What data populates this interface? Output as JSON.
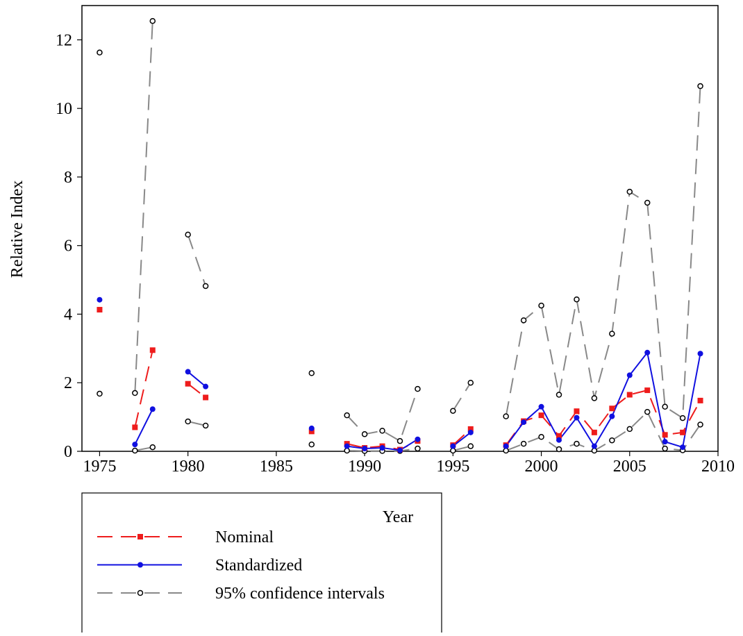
{
  "chart_data": {
    "type": "line",
    "xlabel": "Year",
    "ylabel": "Relative Index",
    "x": [
      1975,
      1976,
      1977,
      1978,
      1979,
      1980,
      1981,
      1982,
      1983,
      1984,
      1985,
      1986,
      1987,
      1988,
      1989,
      1990,
      1991,
      1992,
      1993,
      1994,
      1995,
      1996,
      1997,
      1998,
      1999,
      2000,
      2001,
      2002,
      2003,
      2004,
      2005,
      2006,
      2007,
      2008,
      2009
    ],
    "xlim": [
      1974,
      2010
    ],
    "xticks": [
      1975,
      1980,
      1985,
      1990,
      1995,
      2000,
      2005,
      2010
    ],
    "ylim": [
      0,
      13
    ],
    "yticks": [
      0,
      2,
      4,
      6,
      8,
      10,
      12
    ],
    "series": [
      {
        "name": "Nominal",
        "color": "#ee1c1c",
        "marker": "square",
        "dash": "dashed",
        "values": [
          4.13,
          null,
          0.7,
          2.95,
          null,
          1.97,
          1.57,
          null,
          null,
          null,
          null,
          null,
          0.58,
          null,
          0.22,
          0.1,
          0.15,
          0.05,
          0.3,
          null,
          0.18,
          0.65,
          null,
          0.18,
          0.88,
          1.05,
          0.45,
          1.17,
          0.55,
          1.25,
          1.65,
          1.78,
          0.48,
          0.55,
          1.48
        ]
      },
      {
        "name": "Standardized",
        "color": "#1010e0",
        "marker": "circle",
        "dash": "solid",
        "values": [
          4.42,
          null,
          0.2,
          1.23,
          null,
          2.32,
          1.89,
          null,
          null,
          null,
          null,
          null,
          0.67,
          null,
          0.15,
          0.08,
          0.1,
          0.03,
          0.35,
          null,
          0.15,
          0.55,
          null,
          0.15,
          0.85,
          1.3,
          0.33,
          0.98,
          0.15,
          1.02,
          2.22,
          2.88,
          0.28,
          0.12,
          2.85
        ]
      },
      {
        "name": "95% confidence intervals",
        "color": "#888888",
        "marker": "open-circle",
        "dash": "dashed",
        "upper": [
          11.63,
          null,
          1.7,
          12.55,
          null,
          6.32,
          4.82,
          null,
          null,
          null,
          null,
          null,
          2.28,
          null,
          1.05,
          0.5,
          0.6,
          0.3,
          1.82,
          null,
          1.18,
          2.0,
          null,
          1.02,
          3.82,
          4.25,
          1.65,
          4.43,
          1.55,
          3.43,
          7.57,
          7.25,
          1.3,
          0.97,
          10.65
        ],
        "lower": [
          1.68,
          null,
          0.02,
          0.12,
          null,
          0.87,
          0.75,
          null,
          null,
          null,
          null,
          null,
          0.2,
          null,
          0.02,
          0.01,
          0.01,
          0.01,
          0.08,
          null,
          0.02,
          0.15,
          null,
          0.02,
          0.22,
          0.42,
          0.06,
          0.22,
          0.02,
          0.32,
          0.65,
          1.15,
          0.08,
          0.03,
          0.78
        ]
      }
    ]
  }
}
